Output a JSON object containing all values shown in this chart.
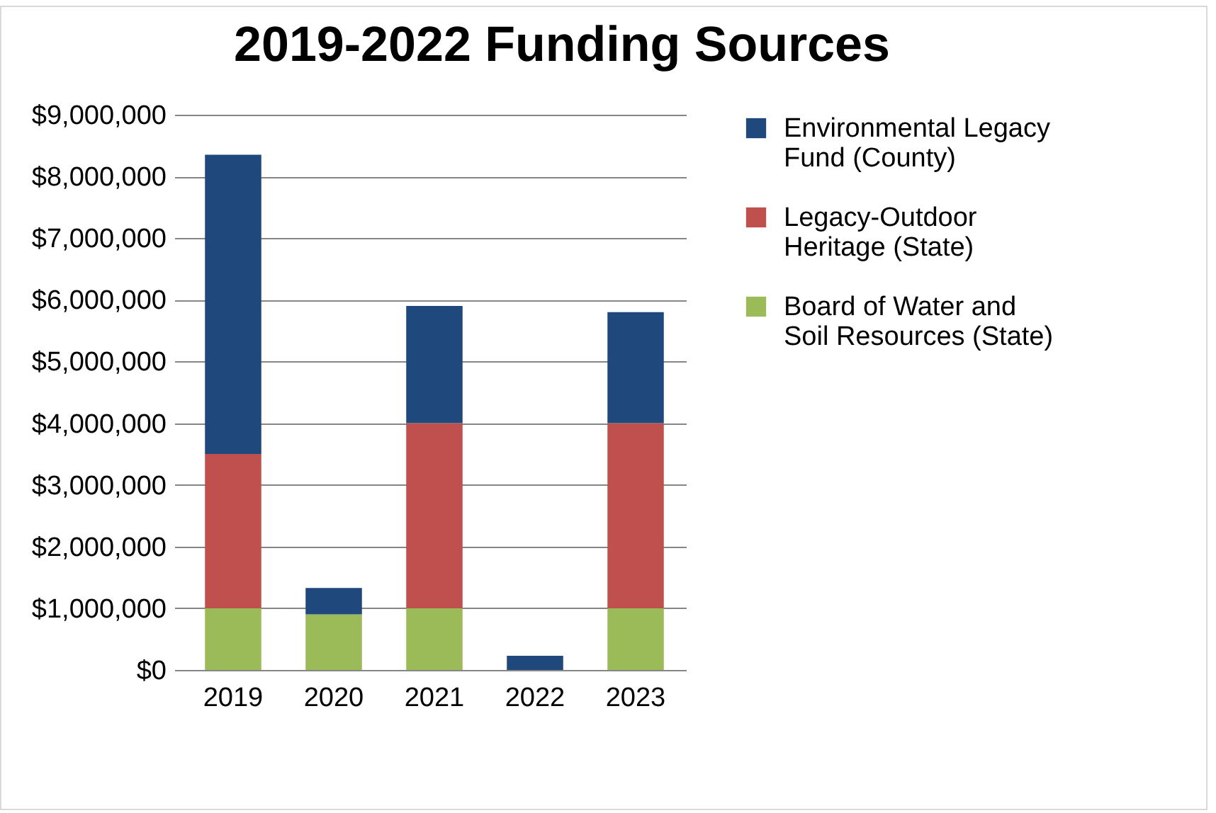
{
  "chart_data": {
    "type": "bar",
    "title": "2019-2022 Funding Sources",
    "stacked": true,
    "categories": [
      "2019",
      "2020",
      "2021",
      "2022",
      "2023"
    ],
    "series": [
      {
        "name": "Board of Water and Soil Resources (State)",
        "color": "#9bbb59",
        "values": [
          1000000,
          900000,
          1000000,
          null,
          1000000
        ]
      },
      {
        "name": "Legacy-Outdoor Heritage (State)",
        "color": "#c0504d",
        "values": [
          2500000,
          null,
          3000000,
          null,
          3000000
        ]
      },
      {
        "name": "Environmental Legacy Fund (County)",
        "color": "#1f497d",
        "values": [
          4850000,
          430000,
          1900000,
          230000,
          1800000
        ]
      }
    ],
    "ylim": [
      0,
      9000000
    ],
    "yticks": [
      {
        "value": 0,
        "label": "$0"
      },
      {
        "value": 1000000,
        "label": "$1,000,000"
      },
      {
        "value": 2000000,
        "label": "$2,000,000"
      },
      {
        "value": 3000000,
        "label": "$3,000,000"
      },
      {
        "value": 4000000,
        "label": "$4,000,000"
      },
      {
        "value": 5000000,
        "label": "$5,000,000"
      },
      {
        "value": 6000000,
        "label": "$6,000,000"
      },
      {
        "value": 7000000,
        "label": "$7,000,000"
      },
      {
        "value": 8000000,
        "label": "$8,000,000"
      },
      {
        "value": 9000000,
        "label": "$9,000,000"
      }
    ],
    "grid": "y",
    "legend": "right"
  }
}
